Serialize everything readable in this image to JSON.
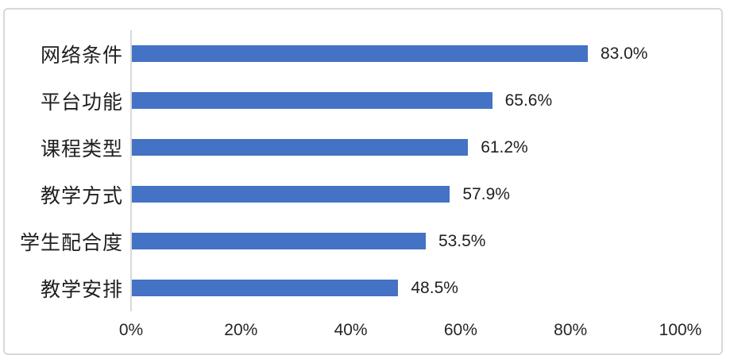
{
  "chart_data": {
    "type": "bar",
    "orientation": "horizontal",
    "title": "",
    "xlabel": "",
    "ylabel": "",
    "categories": [
      "网络条件",
      "平台功能",
      "课程类型",
      "教学方式",
      "学生配合度",
      "教学安排"
    ],
    "values": [
      83.0,
      65.6,
      61.2,
      57.9,
      53.5,
      48.5
    ],
    "value_labels": [
      "83.0%",
      "65.6%",
      "61.2%",
      "57.9%",
      "53.5%",
      "48.5%"
    ],
    "x_ticks": [
      "0%",
      "20%",
      "40%",
      "60%",
      "80%",
      "100%"
    ],
    "x_tick_values": [
      0,
      20,
      40,
      60,
      80,
      100
    ],
    "xlim": [
      0,
      100
    ],
    "grid": "off",
    "legend": "none",
    "bar_color": "#4472C4",
    "axis_line_color": "#D9D9D9",
    "text_color": "#1F1F1F"
  }
}
